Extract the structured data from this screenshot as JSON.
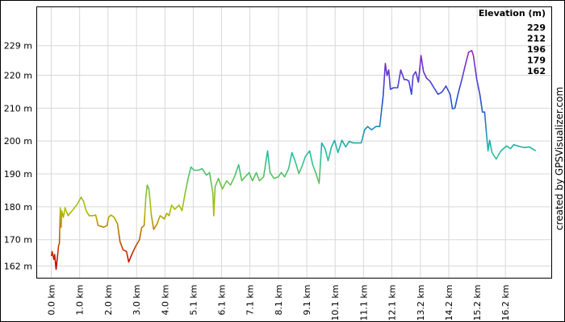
{
  "chart_data": {
    "type": "line",
    "x": [
      0,
      0.03,
      0.09,
      0.12,
      0.17,
      0.2,
      0.26,
      0.29,
      0.32,
      0.35,
      0.37,
      0.43,
      0.49,
      0.6,
      0.78,
      0.92,
      1.06,
      1.15,
      1.24,
      1.35,
      1.47,
      1.58,
      1.67,
      1.87,
      1.99,
      2.04,
      2.13,
      2.24,
      2.36,
      2.45,
      2.56,
      2.68,
      2.76,
      2.88,
      3.02,
      3.14,
      3.22,
      3.31,
      3.37,
      3.42,
      3.48,
      3.57,
      3.65,
      3.77,
      3.88,
      4.03,
      4.12,
      4.2,
      4.29,
      4.4,
      4.55,
      4.66,
      4.78,
      4.89,
      4.98,
      5.09,
      5.24,
      5.38,
      5.53,
      5.64,
      5.76,
      5.79,
      5.84,
      5.96,
      6.1,
      6.25,
      6.39,
      6.53,
      6.68,
      6.79,
      6.91,
      7.05,
      7.17,
      7.31,
      7.42,
      7.57,
      7.71,
      7.8,
      7.94,
      8.09,
      8.2,
      8.32,
      8.46,
      8.58,
      8.69,
      8.83,
      8.95,
      9.06,
      9.21,
      9.32,
      9.44,
      9.55,
      9.64,
      9.76,
      9.87,
      9.99,
      10.1,
      10.22,
      10.36,
      10.5,
      10.62,
      10.76,
      10.91,
      11.05,
      11.17,
      11.28,
      11.42,
      11.57,
      11.71,
      11.83,
      11.91,
      11.97,
      12.03,
      12.09,
      12.2,
      12.35,
      12.46,
      12.58,
      12.66,
      12.75,
      12.84,
      12.9,
      12.99,
      13.09,
      13.18,
      13.27,
      13.38,
      13.5,
      13.64,
      13.79,
      13.93,
      14.07,
      14.22,
      14.3,
      14.39,
      14.5,
      14.65,
      14.79,
      14.88,
      14.99,
      15.05,
      15.17,
      15.28,
      15.37,
      15.45,
      15.57,
      15.63,
      15.71,
      15.86,
      16.03,
      16.23,
      16.37,
      16.49,
      16.63,
      16.75,
      16.89,
      17.04,
      17.18,
      17.27
    ],
    "values": [
      165.0,
      166.4,
      164.0,
      165.5,
      161.0,
      163.2,
      168.2,
      168.9,
      179.7,
      173.8,
      178.8,
      176.8,
      179.7,
      177.3,
      179.2,
      180.7,
      182.9,
      181.7,
      178.8,
      177.3,
      177.3,
      177.5,
      174.3,
      173.8,
      174.3,
      176.8,
      177.5,
      176.8,
      174.8,
      169.4,
      166.9,
      166.4,
      163.2,
      165.7,
      168.2,
      169.9,
      173.6,
      174.3,
      182.9,
      186.6,
      185.4,
      177.3,
      173.1,
      174.8,
      177.3,
      176.3,
      178.0,
      177.3,
      180.5,
      179.2,
      180.5,
      178.8,
      184.6,
      189.1,
      192.1,
      191.1,
      191.1,
      191.6,
      189.6,
      190.4,
      184.2,
      177.3,
      186.1,
      188.6,
      185.4,
      187.9,
      186.6,
      189.1,
      192.8,
      187.9,
      189.1,
      190.4,
      187.9,
      190.4,
      187.9,
      189.1,
      197.0,
      190.4,
      188.6,
      189.1,
      190.4,
      189.1,
      191.6,
      196.5,
      194.0,
      190.1,
      192.6,
      195.3,
      197.0,
      192.8,
      190.1,
      187.1,
      199.4,
      197.7,
      194.0,
      198.2,
      200.2,
      196.5,
      200.2,
      198.2,
      199.9,
      199.4,
      199.4,
      199.4,
      203.4,
      204.4,
      203.4,
      204.4,
      204.4,
      213.7,
      223.6,
      219.9,
      221.6,
      215.7,
      216.2,
      216.2,
      221.6,
      218.7,
      218.7,
      218.2,
      214.2,
      219.9,
      221.1,
      217.9,
      226.0,
      221.1,
      219.1,
      218.2,
      216.2,
      214.2,
      214.9,
      216.7,
      214.2,
      209.8,
      210.0,
      214.2,
      219.1,
      224.1,
      227.0,
      227.5,
      226.0,
      218.7,
      214.2,
      208.8,
      208.8,
      197.0,
      200.2,
      196.5,
      194.5,
      197.0,
      198.5,
      197.7,
      198.9,
      198.5,
      198.2,
      198.0,
      198.2,
      197.5,
      197.0
    ],
    "xlim": [
      -0.52,
      17.84
    ],
    "ylim": [
      158.3,
      240.8
    ],
    "xticks": [
      {
        "value": 0,
        "label": "0.0 km"
      },
      {
        "value": 1.01,
        "label": "1.0 km"
      },
      {
        "value": 2.02,
        "label": "2.0 km"
      },
      {
        "value": 3.04,
        "label": "3.0 km"
      },
      {
        "value": 4.05,
        "label": "4.0 km"
      },
      {
        "value": 5.06,
        "label": "5.1 km"
      },
      {
        "value": 6.07,
        "label": "6.1 km"
      },
      {
        "value": 7.08,
        "label": "7.1 km"
      },
      {
        "value": 8.1,
        "label": "8.1 km"
      },
      {
        "value": 9.11,
        "label": "9.1 km"
      },
      {
        "value": 10.12,
        "label": "10.1 km"
      },
      {
        "value": 11.13,
        "label": "11.1 km"
      },
      {
        "value": 12.14,
        "label": "12.1 km"
      },
      {
        "value": 13.16,
        "label": "13.2 km"
      },
      {
        "value": 14.17,
        "label": "14.2 km"
      },
      {
        "value": 15.18,
        "label": "15.2 km"
      },
      {
        "value": 16.19,
        "label": "16.2 km"
      }
    ],
    "yticks": [
      {
        "value": 229,
        "label": "229 m"
      },
      {
        "value": 220,
        "label": "220 m"
      },
      {
        "value": 210,
        "label": "210 m"
      },
      {
        "value": 200,
        "label": "200 m"
      },
      {
        "value": 190,
        "label": "190 m"
      },
      {
        "value": 180,
        "label": "180 m"
      },
      {
        "value": 170,
        "label": "170 m"
      },
      {
        "value": 162,
        "label": "162 m"
      }
    ],
    "grid": true,
    "legend": {
      "title": "Elevation (m)",
      "stops": [
        229,
        212,
        196,
        179,
        162
      ],
      "colors": [
        "#a020c8",
        "#2050d0",
        "#20c0a0",
        "#b0c000",
        "#c80000"
      ]
    },
    "credit": "created by GPSVisualizer.com"
  }
}
